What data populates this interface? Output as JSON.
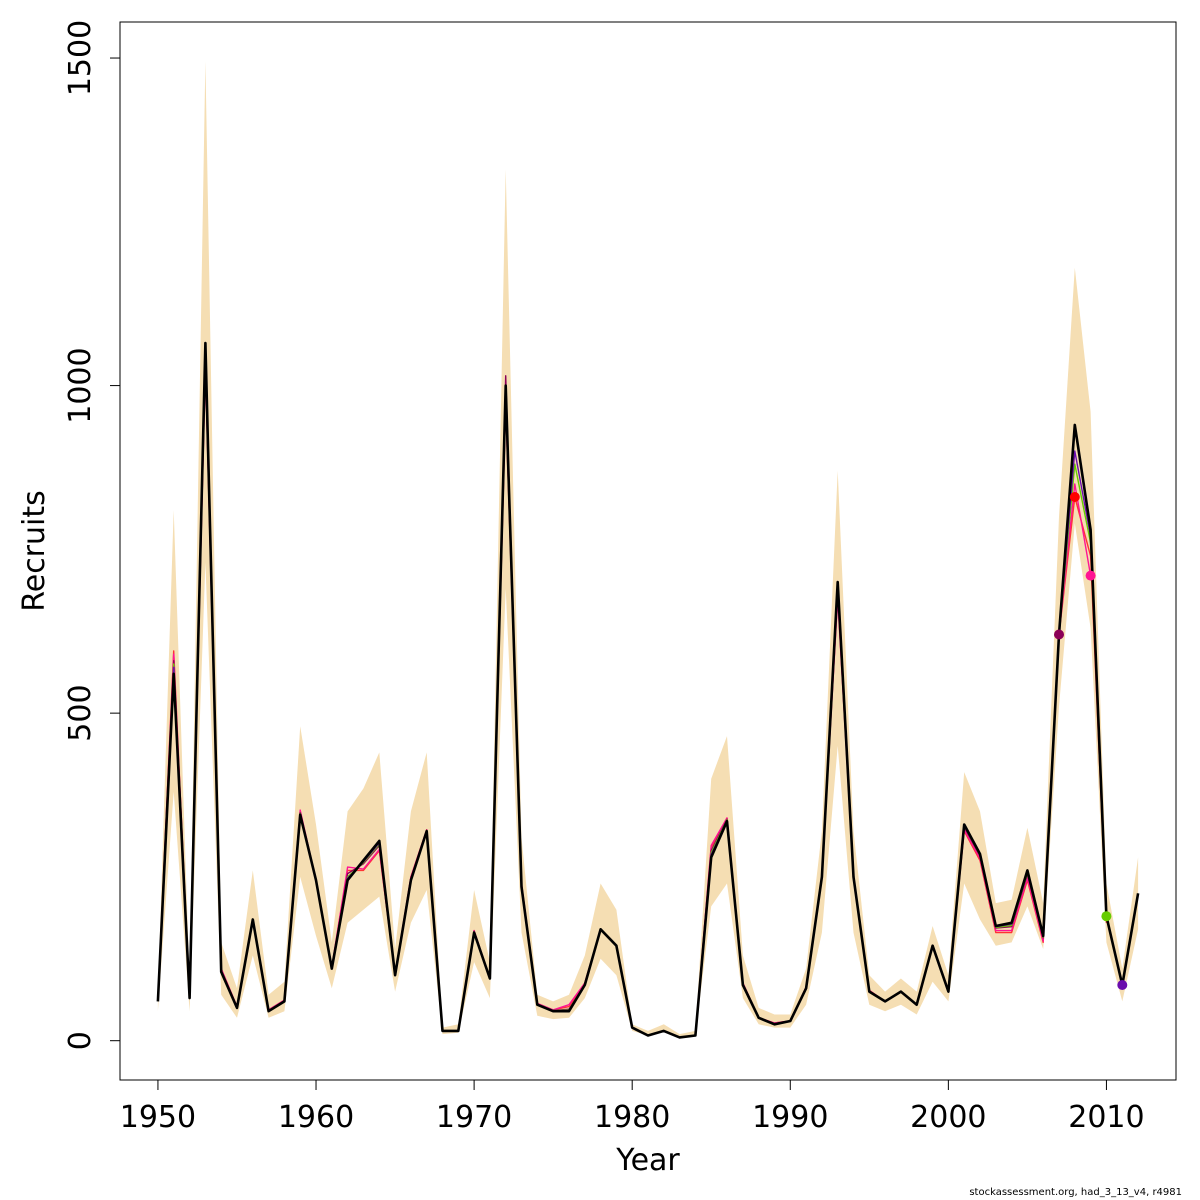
{
  "chart_data": {
    "type": "line",
    "xlabel": "Year",
    "ylabel": "Recruits",
    "xlim": [
      1947.6,
      2014.4
    ],
    "ylim": [
      -60,
      1555
    ],
    "x_ticks": [
      1950,
      1960,
      1970,
      1980,
      1990,
      2000,
      2010
    ],
    "y_ticks": [
      0,
      500,
      1000,
      1500
    ],
    "band_color": "#f5deb3",
    "band": {
      "x": [
        1950,
        1951,
        1952,
        1953,
        1954,
        1955,
        1956,
        1957,
        1958,
        1959,
        1960,
        1961,
        1962,
        1963,
        1964,
        1965,
        1966,
        1967,
        1968,
        1969,
        1970,
        1971,
        1972,
        1973,
        1974,
        1975,
        1976,
        1977,
        1978,
        1979,
        1980,
        1981,
        1982,
        1983,
        1984,
        1985,
        1986,
        1987,
        1988,
        1989,
        1990,
        1991,
        1992,
        1993,
        1994,
        1995,
        1996,
        1997,
        1998,
        1999,
        2000,
        2001,
        2002,
        2003,
        2004,
        2005,
        2006,
        2007,
        2008,
        2009,
        2010,
        2011,
        2012
      ],
      "upper": [
        70,
        810,
        90,
        1495,
        150,
        80,
        260,
        70,
        90,
        480,
        330,
        150,
        350,
        385,
        440,
        140,
        350,
        440,
        20,
        25,
        230,
        120,
        1330,
        310,
        70,
        60,
        70,
        130,
        240,
        200,
        25,
        15,
        25,
        10,
        15,
        400,
        465,
        130,
        50,
        40,
        40,
        110,
        320,
        870,
        320,
        100,
        75,
        95,
        75,
        175,
        100,
        410,
        350,
        210,
        215,
        325,
        210,
        800,
        1180,
        960,
        240,
        110,
        280
      ],
      "lower": [
        45,
        380,
        45,
        730,
        70,
        35,
        130,
        35,
        45,
        250,
        160,
        80,
        180,
        200,
        220,
        75,
        180,
        230,
        10,
        12,
        120,
        65,
        690,
        165,
        38,
        33,
        35,
        65,
        125,
        100,
        15,
        8,
        13,
        5,
        8,
        205,
        240,
        65,
        25,
        20,
        20,
        55,
        165,
        450,
        165,
        55,
        45,
        55,
        40,
        90,
        60,
        240,
        185,
        145,
        150,
        205,
        140,
        510,
        790,
        630,
        150,
        60,
        170
      ]
    },
    "series": [
      {
        "color": "#000000",
        "y": [
          60,
          560,
          65,
          1065,
          105,
          50,
          185,
          45,
          60,
          345,
          245,
          110,
          245,
          275,
          305,
          100,
          245,
          320,
          15,
          15,
          165,
          95,
          1000,
          235,
          55,
          45,
          45,
          85,
          170,
          145,
          20,
          8,
          15,
          5,
          8,
          280,
          335,
          85,
          35,
          25,
          30,
          80,
          250,
          700,
          250,
          75,
          60,
          75,
          55,
          145,
          75,
          330,
          285,
          175,
          180,
          260,
          160,
          620,
          940,
          780,
          190,
          85,
          225
        ]
      },
      {
        "color": "#ff3333",
        "y": [
          62,
          595,
          65,
          1035,
          110,
          52,
          185,
          47,
          62,
          350,
          245,
          112,
          260,
          260,
          290,
          102,
          250,
          322,
          15,
          15,
          168,
          95,
          970,
          240,
          57,
          47,
          52,
          88,
          170,
          145,
          20,
          8,
          15,
          5,
          8,
          295,
          340,
          88,
          35,
          27,
          30,
          82,
          250,
          680,
          250,
          77,
          60,
          75,
          55,
          145,
          77,
          320,
          275,
          165,
          165,
          245,
          150,
          620,
          830,
          740,
          180
        ]
      },
      {
        "color": "#ff1493",
        "y": [
          62,
          590,
          65,
          1030,
          110,
          52,
          185,
          47,
          62,
          352,
          245,
          112,
          265,
          262,
          292,
          102,
          250,
          322,
          15,
          15,
          168,
          95,
          975,
          240,
          57,
          47,
          55,
          88,
          170,
          145,
          20,
          8,
          15,
          5,
          8,
          298,
          340,
          88,
          35,
          27,
          30,
          82,
          252,
          675,
          250,
          77,
          60,
          75,
          55,
          145,
          77,
          322,
          278,
          168,
          168,
          248,
          152,
          620,
          850,
          710
        ]
      },
      {
        "color": "#8b0057",
        "y": [
          62,
          580,
          65,
          1045,
          108,
          51,
          185,
          46,
          61,
          348,
          245,
          111,
          255,
          270,
          298,
          101,
          248,
          321,
          15,
          15,
          167,
          95,
          1015,
          238,
          56,
          46,
          48,
          86,
          170,
          145,
          20,
          8,
          15,
          5,
          8,
          290,
          338,
          86,
          35,
          26,
          30,
          81,
          252,
          690,
          252,
          76,
          60,
          75,
          55,
          145,
          76,
          326,
          282,
          172,
          174,
          254,
          157,
          620
        ]
      },
      {
        "color": "#66cc00",
        "y": [
          62,
          575,
          65,
          1050,
          107,
          51,
          185,
          46,
          61,
          347,
          245,
          111,
          250,
          272,
          300,
          101,
          247,
          321,
          15,
          15,
          166,
          95,
          990,
          237,
          56,
          46,
          47,
          86,
          170,
          145,
          20,
          8,
          15,
          5,
          8,
          287,
          337,
          86,
          35,
          26,
          30,
          81,
          251,
          695,
          251,
          76,
          60,
          75,
          55,
          145,
          76,
          328,
          283,
          173,
          176,
          256,
          158,
          622,
          880,
          760,
          190
        ]
      },
      {
        "color": "#6a0dad",
        "y": [
          62,
          570,
          65,
          1055,
          106,
          51,
          185,
          46,
          61,
          346,
          245,
          110,
          248,
          273,
          302,
          100,
          246,
          320,
          15,
          15,
          166,
          95,
          995,
          236,
          56,
          46,
          46,
          85,
          170,
          145,
          20,
          8,
          15,
          5,
          8,
          284,
          336,
          85,
          35,
          26,
          30,
          80,
          250,
          697,
          250,
          75,
          60,
          75,
          55,
          145,
          75,
          329,
          284,
          174,
          178,
          258,
          159,
          621,
          900,
          770,
          192,
          85
        ]
      }
    ],
    "endpoints": [
      {
        "x": 2007,
        "y": 620,
        "color": "#8b0057"
      },
      {
        "x": 2008,
        "y": 830,
        "color": "#ff0000"
      },
      {
        "x": 2009,
        "y": 710,
        "color": "#ff1493"
      },
      {
        "x": 2010,
        "y": 190,
        "color": "#66cc00"
      },
      {
        "x": 2011,
        "y": 85,
        "color": "#6a0dad"
      }
    ]
  },
  "footer_text": "stockassessment.org, had_3_13_v4, r4981"
}
